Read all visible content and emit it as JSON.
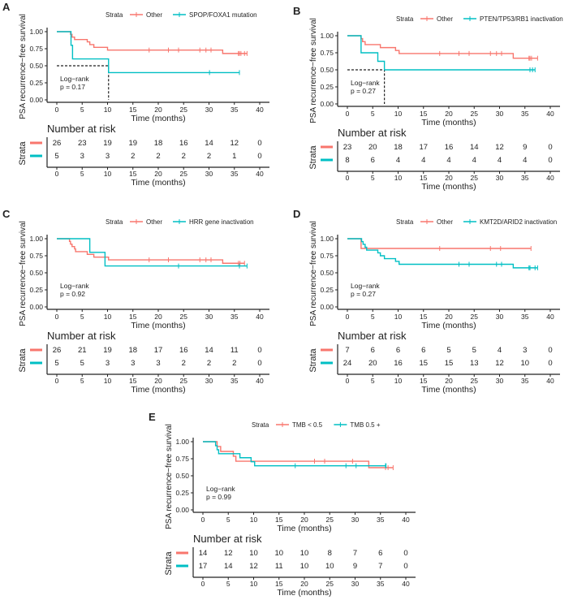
{
  "colors": {
    "other": "#F8766D",
    "group": "#00BFC4",
    "axis": "#222222"
  },
  "chart_data": [
    {
      "type": "line",
      "panel": "A",
      "title": "",
      "ylabel": "PSA recurrence−free survival",
      "xlabel": "Time (months)",
      "xlim": [
        0,
        40
      ],
      "ylim": [
        0,
        1
      ],
      "xticks": [
        "0",
        "5",
        "10",
        "15",
        "20",
        "25",
        "30",
        "35",
        "40"
      ],
      "yticks": [
        "0.00",
        "0.25",
        "0.50",
        "0.75",
        "1.00"
      ],
      "legend_title": "Strata",
      "legend_position": "top",
      "annotation": [
        "Log−rank",
        "p = 0.17"
      ],
      "median_line": 10.2,
      "series": [
        {
          "name": "Other",
          "steps": [
            [
              0,
              1
            ],
            [
              2.7,
              0.96
            ],
            [
              3.0,
              0.92
            ],
            [
              3.5,
              0.885
            ],
            [
              6,
              0.85
            ],
            [
              6.5,
              0.81
            ],
            [
              7.3,
              0.77
            ],
            [
              10,
              0.73
            ],
            [
              32.7,
              0.68
            ],
            [
              37.5,
              0.68
            ]
          ],
          "censor": [
            18.2,
            22,
            24,
            28.2,
            29.4,
            30.4,
            35.8,
            36,
            36.3,
            37,
            37.5
          ]
        },
        {
          "name": "SPOP/FOXA1 mutation",
          "steps": [
            [
              0,
              1
            ],
            [
              2.8,
              0.8
            ],
            [
              3.1,
              0.6
            ],
            [
              10.2,
              0.4
            ],
            [
              36,
              0.4
            ]
          ],
          "censor": [
            30.1,
            36
          ]
        }
      ],
      "risk_title": "Number at risk",
      "risk_ylabel": "Strata",
      "risk_xlabel": "Time (months)",
      "risk": [
        [
          "26",
          "23",
          "19",
          "19",
          "18",
          "16",
          "14",
          "12",
          "0"
        ],
        [
          "5",
          "3",
          "3",
          "2",
          "2",
          "2",
          "2",
          "1",
          "0"
        ]
      ]
    },
    {
      "type": "line",
      "panel": "B",
      "title": "",
      "ylabel": "PSA recurrence−free survival",
      "xlabel": "Time (months)",
      "xlim": [
        0,
        40
      ],
      "ylim": [
        0,
        1
      ],
      "xticks": [
        "0",
        "5",
        "10",
        "15",
        "20",
        "25",
        "30",
        "35",
        "40"
      ],
      "yticks": [
        "0.00",
        "0.25",
        "0.50",
        "0.75",
        "1.00"
      ],
      "legend_title": "Strata",
      "legend_position": "top",
      "annotation": [
        "Log−rank",
        "p = 0.27"
      ],
      "median_line": 7.3,
      "series": [
        {
          "name": "Other",
          "steps": [
            [
              0,
              1
            ],
            [
              2.7,
              0.957
            ],
            [
              3.0,
              0.913
            ],
            [
              3.5,
              0.87
            ],
            [
              6.5,
              0.826
            ],
            [
              9.5,
              0.783
            ],
            [
              10.2,
              0.739
            ],
            [
              32.7,
              0.67
            ],
            [
              37.5,
              0.67
            ]
          ],
          "censor": [
            18.2,
            22,
            24,
            28.2,
            29.4,
            30.4,
            35.8,
            36,
            36.3,
            37.5
          ]
        },
        {
          "name": "PTEN/TP53/RB1 inactivation",
          "steps": [
            [
              0,
              1
            ],
            [
              2.7,
              0.75
            ],
            [
              6,
              0.625
            ],
            [
              7.3,
              0.5
            ],
            [
              37,
              0.5
            ]
          ],
          "censor": [
            36,
            36.5,
            37
          ]
        }
      ],
      "risk_title": "Number at risk",
      "risk_ylabel": "Strata",
      "risk_xlabel": "Time (months)",
      "risk": [
        [
          "23",
          "20",
          "18",
          "17",
          "16",
          "14",
          "12",
          "9",
          "0"
        ],
        [
          "8",
          "6",
          "4",
          "4",
          "4",
          "4",
          "4",
          "4",
          "0"
        ]
      ]
    },
    {
      "type": "line",
      "panel": "C",
      "title": "",
      "ylabel": "PSA recurrence−free survival",
      "xlabel": "Time (months)",
      "xlim": [
        0,
        40
      ],
      "ylim": [
        0,
        1
      ],
      "xticks": [
        "0",
        "5",
        "10",
        "15",
        "20",
        "25",
        "30",
        "35",
        "40"
      ],
      "yticks": [
        "0.00",
        "0.25",
        "0.50",
        "0.75",
        "1.00"
      ],
      "legend_title": "Strata",
      "legend_position": "top",
      "annotation": [
        "Log−rank",
        "p = 0.92"
      ],
      "median_line": null,
      "series": [
        {
          "name": "Other",
          "steps": [
            [
              0,
              1
            ],
            [
              2.5,
              0.96
            ],
            [
              2.7,
              0.92
            ],
            [
              3,
              0.885
            ],
            [
              3.5,
              0.85
            ],
            [
              3.7,
              0.81
            ],
            [
              6,
              0.77
            ],
            [
              7.3,
              0.73
            ],
            [
              10.2,
              0.69
            ],
            [
              32.7,
              0.64
            ],
            [
              37,
              0.64
            ]
          ],
          "censor": [
            18.2,
            22,
            28.2,
            29.4,
            30.4,
            35.8,
            36.1,
            37
          ]
        },
        {
          "name": "HRR gene inactivation",
          "steps": [
            [
              0,
              1
            ],
            [
              6.5,
              0.8
            ],
            [
              9.5,
              0.6
            ],
            [
              37.5,
              0.6
            ]
          ],
          "censor": [
            24,
            36,
            37.5
          ]
        }
      ],
      "risk_title": "Number at risk",
      "risk_ylabel": "Strata",
      "risk_xlabel": "Time (months)",
      "risk": [
        [
          "26",
          "21",
          "19",
          "18",
          "17",
          "16",
          "14",
          "11",
          "0"
        ],
        [
          "5",
          "5",
          "3",
          "3",
          "3",
          "2",
          "2",
          "2",
          "0"
        ]
      ]
    },
    {
      "type": "line",
      "panel": "D",
      "title": "",
      "ylabel": "PSA recurrence−free survival",
      "xlabel": "Time (months)",
      "xlim": [
        0,
        40
      ],
      "ylim": [
        0,
        1
      ],
      "xticks": [
        "0",
        "5",
        "10",
        "15",
        "20",
        "25",
        "30",
        "35",
        "40"
      ],
      "yticks": [
        "0.00",
        "0.25",
        "0.50",
        "0.75",
        "1.00"
      ],
      "legend_title": "Strata",
      "legend_position": "top",
      "annotation": [
        "Log−rank",
        "p = 0.27"
      ],
      "median_line": null,
      "series": [
        {
          "name": "Other",
          "steps": [
            [
              0,
              1
            ],
            [
              2.7,
              0.857
            ],
            [
              36.2,
              0.857
            ]
          ],
          "censor": [
            18.2,
            28.2,
            30.2,
            36.2
          ]
        },
        {
          "name": "KMT2D/ARID2 inactivation",
          "steps": [
            [
              0,
              1
            ],
            [
              2.8,
              0.958
            ],
            [
              3.1,
              0.917
            ],
            [
              3.5,
              0.875
            ],
            [
              3.8,
              0.833
            ],
            [
              6,
              0.792
            ],
            [
              6.5,
              0.75
            ],
            [
              7.3,
              0.708
            ],
            [
              9.5,
              0.667
            ],
            [
              10.2,
              0.625
            ],
            [
              32.7,
              0.573
            ],
            [
              37.5,
              0.573
            ]
          ],
          "censor": [
            22,
            24,
            29.4,
            30.4,
            35.8,
            36,
            37,
            37.5
          ]
        }
      ],
      "risk_title": "Number at risk",
      "risk_ylabel": "Strata",
      "risk_xlabel": "Time (months)",
      "risk": [
        [
          "7",
          "6",
          "6",
          "6",
          "5",
          "5",
          "4",
          "3",
          "0"
        ],
        [
          "24",
          "20",
          "16",
          "15",
          "15",
          "13",
          "12",
          "10",
          "0"
        ]
      ]
    },
    {
      "type": "line",
      "panel": "E",
      "title": "",
      "ylabel": "PSA recurrence−free survival",
      "xlabel": "Time (months)",
      "xlim": [
        0,
        40
      ],
      "ylim": [
        0,
        1
      ],
      "xticks": [
        "0",
        "5",
        "10",
        "15",
        "20",
        "25",
        "30",
        "35",
        "40"
      ],
      "yticks": [
        "0.00",
        "0.25",
        "0.50",
        "0.75",
        "1.00"
      ],
      "legend_title": "Strata",
      "legend_position": "top",
      "annotation": [
        "Log−rank",
        "p = 0.99"
      ],
      "median_line": null,
      "series": [
        {
          "name": "TMB < 0.5",
          "steps": [
            [
              0,
              1
            ],
            [
              2.8,
              0.929
            ],
            [
              3.5,
              0.857
            ],
            [
              6,
              0.786
            ],
            [
              6.5,
              0.714
            ],
            [
              32.7,
              0.619
            ],
            [
              37.5,
              0.619
            ]
          ],
          "censor": [
            22,
            24,
            29.5,
            36,
            36.5,
            37.5
          ]
        },
        {
          "name": "TMB 0.5 +",
          "steps": [
            [
              0,
              1
            ],
            [
              2.5,
              0.941
            ],
            [
              2.8,
              0.882
            ],
            [
              3.1,
              0.824
            ],
            [
              7.3,
              0.765
            ],
            [
              9.5,
              0.706
            ],
            [
              10.2,
              0.647
            ],
            [
              36.1,
              0.647
            ]
          ],
          "censor": [
            18.2,
            28.2,
            30.2,
            36,
            36.1
          ]
        }
      ],
      "risk_title": "Number at risk",
      "risk_ylabel": "Strata",
      "risk_xlabel": "Time (months)",
      "risk": [
        [
          "14",
          "12",
          "10",
          "10",
          "10",
          "8",
          "7",
          "6",
          "0"
        ],
        [
          "17",
          "14",
          "12",
          "11",
          "10",
          "10",
          "9",
          "7",
          "0"
        ]
      ]
    }
  ]
}
